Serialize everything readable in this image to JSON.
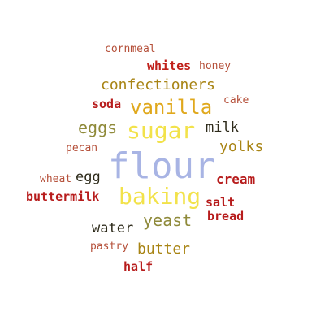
{
  "words": [
    {
      "text": "cornmeal",
      "color": "#b5503a",
      "weight": "normal"
    },
    {
      "text": "whites",
      "color": "#c0201a",
      "weight": "bold"
    },
    {
      "text": "honey",
      "color": "#b5503a",
      "weight": "normal"
    },
    {
      "text": "confectioners",
      "color": "#a88414",
      "weight": "normal"
    },
    {
      "text": "soda",
      "color": "#b71c1c",
      "weight": "bold"
    },
    {
      "text": "vanilla",
      "color": "#e0a81c",
      "weight": "normal"
    },
    {
      "text": "cake",
      "color": "#b5503a",
      "weight": "normal"
    },
    {
      "text": "eggs",
      "color": "#8f8a3a",
      "weight": "normal"
    },
    {
      "text": "sugar",
      "color": "#f2e24a",
      "weight": "normal"
    },
    {
      "text": "milk",
      "color": "#2d2a1a",
      "weight": "normal"
    },
    {
      "text": "pecan",
      "color": "#b5503a",
      "weight": "normal"
    },
    {
      "text": "yolks",
      "color": "#a88414",
      "weight": "normal"
    },
    {
      "text": "flour",
      "color": "#a8b4e4",
      "weight": "normal"
    },
    {
      "text": "wheat",
      "color": "#b5503a",
      "weight": "normal"
    },
    {
      "text": "egg",
      "color": "#2d2a1a",
      "weight": "normal"
    },
    {
      "text": "cream",
      "color": "#b71c1c",
      "weight": "bold"
    },
    {
      "text": "buttermilk",
      "color": "#b71c1c",
      "weight": "bold"
    },
    {
      "text": "baking",
      "color": "#f2e24a",
      "weight": "normal"
    },
    {
      "text": "salt",
      "color": "#b71c1c",
      "weight": "bold"
    },
    {
      "text": "yeast",
      "color": "#8f8a3a",
      "weight": "normal"
    },
    {
      "text": "bread",
      "color": "#b71c1c",
      "weight": "bold"
    },
    {
      "text": "water",
      "color": "#2d2a1a",
      "weight": "normal"
    },
    {
      "text": "pastry",
      "color": "#b5503a",
      "weight": "normal"
    },
    {
      "text": "butter",
      "color": "#a88414",
      "weight": "normal"
    },
    {
      "text": "half",
      "color": "#b71c1c",
      "weight": "bold"
    }
  ]
}
